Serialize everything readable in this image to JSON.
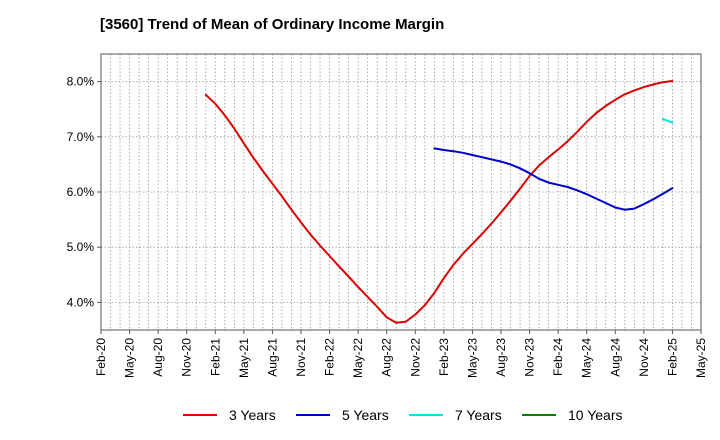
{
  "title": "[3560]  Trend of Mean of Ordinary Income Margin",
  "chart_data": {
    "type": "line",
    "title": "[3560]  Trend of Mean of Ordinary Income Margin",
    "xlabel": "",
    "ylabel": "",
    "x_ticks": [
      "Feb-20",
      "May-20",
      "Aug-20",
      "Nov-20",
      "Feb-21",
      "May-21",
      "Aug-21",
      "Nov-21",
      "Feb-22",
      "May-22",
      "Aug-22",
      "Nov-22",
      "Feb-23",
      "May-23",
      "Aug-23",
      "Nov-23",
      "Feb-24",
      "May-24",
      "Aug-24",
      "Nov-24",
      "Feb-25",
      "May-25"
    ],
    "y_ticks": [
      4.0,
      5.0,
      6.0,
      7.0,
      8.0
    ],
    "y_tick_labels": [
      "4.0%",
      "5.0%",
      "6.0%",
      "7.0%",
      "8.0%"
    ],
    "ylim": [
      3.5,
      8.5
    ],
    "grid": true,
    "legend_position": "bottom",
    "series": [
      {
        "name": "3 Years",
        "color": "#dd0000",
        "x": [
          "Jan-21",
          "Feb-21",
          "Mar-21",
          "Apr-21",
          "May-21",
          "Jun-21",
          "Jul-21",
          "Aug-21",
          "Sep-21",
          "Oct-21",
          "Nov-21",
          "Dec-21",
          "Jan-22",
          "Feb-22",
          "Mar-22",
          "Apr-22",
          "May-22",
          "Jun-22",
          "Jul-22",
          "Aug-22",
          "Sep-22",
          "Oct-22",
          "Nov-22",
          "Dec-22",
          "Jan-23",
          "Feb-23",
          "Mar-23",
          "Apr-23",
          "May-23",
          "Jun-23",
          "Jul-23",
          "Aug-23",
          "Sep-23",
          "Oct-23",
          "Nov-23",
          "Dec-23",
          "Jan-24",
          "Feb-24",
          "Mar-24",
          "Apr-24",
          "May-24",
          "Jun-24",
          "Jul-24",
          "Aug-24",
          "Sep-24",
          "Oct-24",
          "Nov-24",
          "Dec-24",
          "Jan-25",
          "Feb-25"
        ],
        "values": [
          7.76,
          7.6,
          7.39,
          7.15,
          6.88,
          6.62,
          6.38,
          6.15,
          5.92,
          5.68,
          5.45,
          5.23,
          5.03,
          4.84,
          4.65,
          4.47,
          4.28,
          4.1,
          3.92,
          3.73,
          3.63,
          3.65,
          3.78,
          3.95,
          4.17,
          4.44,
          4.68,
          4.88,
          5.06,
          5.24,
          5.43,
          5.63,
          5.84,
          6.06,
          6.29,
          6.48,
          6.63,
          6.77,
          6.92,
          7.09,
          7.27,
          7.43,
          7.56,
          7.67,
          7.77,
          7.84,
          7.9,
          7.95,
          7.99,
          8.01
        ]
      },
      {
        "name": "5 Years",
        "color": "#0000cc",
        "x": [
          "Jan-23",
          "Feb-23",
          "Mar-23",
          "Apr-23",
          "May-23",
          "Jun-23",
          "Jul-23",
          "Aug-23",
          "Sep-23",
          "Oct-23",
          "Nov-23",
          "Dec-23",
          "Jan-24",
          "Feb-24",
          "Mar-24",
          "Apr-24",
          "May-24",
          "Jun-24",
          "Jul-24",
          "Aug-24",
          "Sep-24",
          "Oct-24",
          "Nov-24",
          "Dec-24",
          "Jan-25",
          "Feb-25"
        ],
        "values": [
          6.79,
          6.76,
          6.74,
          6.71,
          6.67,
          6.63,
          6.59,
          6.55,
          6.5,
          6.43,
          6.34,
          6.24,
          6.17,
          6.13,
          6.09,
          6.03,
          5.96,
          5.88,
          5.8,
          5.72,
          5.68,
          5.7,
          5.78,
          5.87,
          5.97,
          6.07
        ]
      },
      {
        "name": "7 Years",
        "color": "#00e5e5",
        "x": [
          "Jan-25",
          "Feb-25"
        ],
        "values": [
          7.32,
          7.26
        ]
      },
      {
        "name": "10 Years",
        "color": "#008000",
        "x": [],
        "values": []
      }
    ]
  }
}
